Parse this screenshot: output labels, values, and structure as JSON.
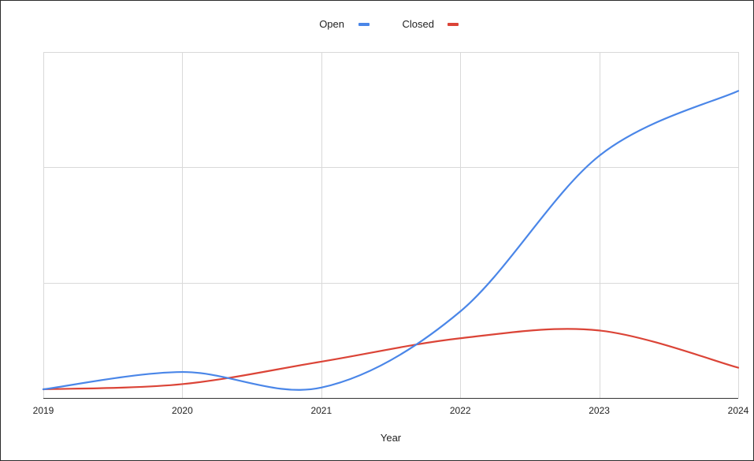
{
  "chart_data": {
    "type": "line",
    "xlabel": "Year",
    "ylabel": "",
    "x": [
      2019,
      2020,
      2021,
      2022,
      2023,
      2024
    ],
    "x_ticks": [
      "2019",
      "2020",
      "2021",
      "2022",
      "2023",
      "2024"
    ],
    "xlim": [
      2019,
      2024
    ],
    "ylim": [
      0,
      400
    ],
    "y_gridlines": [
      0,
      133.3,
      266.7,
      400
    ],
    "grid": true,
    "smooth": true,
    "legend_position": "top-center",
    "series": [
      {
        "name": "Open",
        "color": "#4a86e8",
        "values": [
          10,
          30,
          12,
          100,
          280,
          355
        ]
      },
      {
        "name": "Closed",
        "color": "#db4437",
        "values": [
          10,
          16,
          42,
          69,
          78,
          35
        ]
      }
    ]
  }
}
